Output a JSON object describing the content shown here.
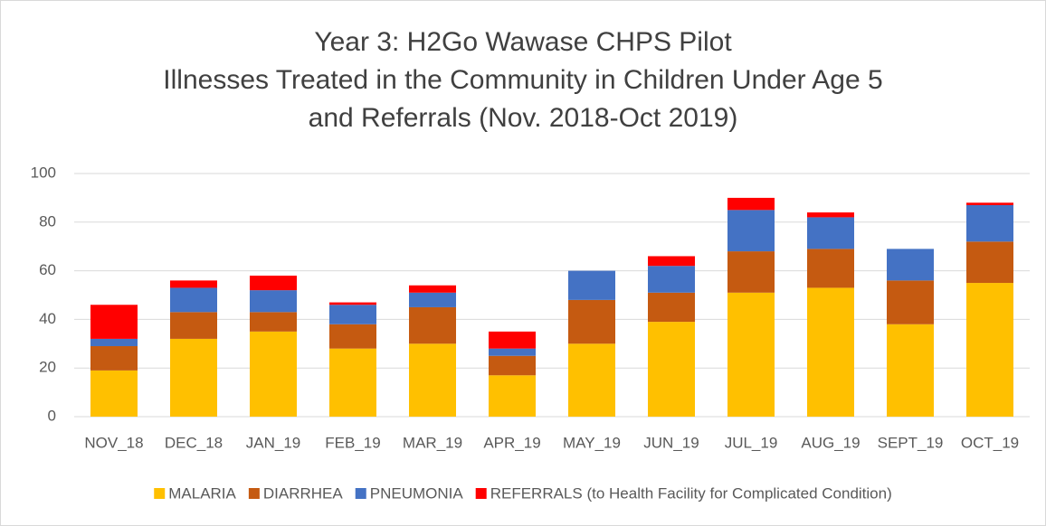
{
  "chart_data": {
    "type": "stacked_bar",
    "title": [
      "Year 3: H2Go Wawase CHPS Pilot",
      "Illnesses Treated in the Community in Children Under Age 5",
      "and Referrals (Nov. 2018-Oct 2019)"
    ],
    "categories": [
      "NOV_18",
      "DEC_18",
      "JAN_19",
      "FEB_19",
      "MAR_19",
      "APR_19",
      "MAY_19",
      "JUN_19",
      "JUL_19",
      "AUG_19",
      "SEPT_19",
      "OCT_19"
    ],
    "series": [
      {
        "name": "MALARIA",
        "color": "#FFC000",
        "values": [
          19,
          32,
          35,
          28,
          30,
          17,
          30,
          39,
          51,
          53,
          38,
          55
        ]
      },
      {
        "name": "DIARRHEA",
        "color": "#C55A11",
        "values": [
          10,
          11,
          8,
          10,
          15,
          8,
          18,
          12,
          17,
          16,
          18,
          17
        ]
      },
      {
        "name": "PNEUMONIA",
        "color": "#4472C4",
        "values": [
          3,
          10,
          9,
          8,
          6,
          3,
          12,
          11,
          17,
          13,
          13,
          15
        ]
      },
      {
        "name": "REFERRALS (to Health Facility for Complicated Condition)",
        "color": "#FF0000",
        "values": [
          14,
          3,
          6,
          1,
          3,
          7,
          0,
          4,
          5,
          2,
          0,
          1
        ]
      }
    ],
    "ylim": [
      0,
      100
    ],
    "yticks": [
      0,
      20,
      40,
      60,
      80,
      100
    ],
    "grid": true,
    "legend": "bottom"
  }
}
